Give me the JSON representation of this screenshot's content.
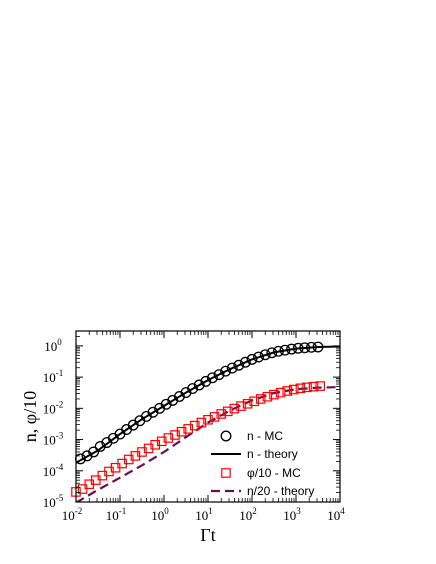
{
  "chart_data": {
    "type": "scatter",
    "title": "",
    "xlabel": "Γt",
    "ylabel": "n, φ/10",
    "xscale": "log",
    "yscale": "log",
    "xlim": [
      0.01,
      10000
    ],
    "ylim": [
      1e-05,
      3
    ],
    "x_ticks": [
      {
        "base": "10",
        "exp": "-2"
      },
      {
        "base": "10",
        "exp": "-1"
      },
      {
        "base": "10",
        "exp": "0"
      },
      {
        "base": "10",
        "exp": "1"
      },
      {
        "base": "10",
        "exp": "2"
      },
      {
        "base": "10",
        "exp": "3"
      },
      {
        "base": "10",
        "exp": "4"
      }
    ],
    "y_ticks": [
      {
        "base": "10",
        "exp": "-5"
      },
      {
        "base": "10",
        "exp": "-4"
      },
      {
        "base": "10",
        "exp": "-3"
      },
      {
        "base": "10",
        "exp": "-2"
      },
      {
        "base": "10",
        "exp": "-1"
      },
      {
        "base": "10",
        "exp": "0"
      }
    ],
    "grid": false,
    "legend_position": "bottom-right",
    "series": [
      {
        "name": "n - MC",
        "kind": "markers",
        "marker": "circle",
        "color": "#000000",
        "points": [
          [
            0.0126,
            0.00024
          ],
          [
            0.0178,
            0.0003
          ],
          [
            0.0251,
            0.0004
          ],
          [
            0.0355,
            0.0006
          ],
          [
            0.0501,
            0.0008
          ],
          [
            0.0708,
            0.0011
          ],
          [
            0.1,
            0.0015
          ],
          [
            0.141,
            0.0021
          ],
          [
            0.2,
            0.0029
          ],
          [
            0.282,
            0.004
          ],
          [
            0.398,
            0.0055
          ],
          [
            0.562,
            0.0075
          ],
          [
            0.794,
            0.01
          ],
          [
            1.12,
            0.0135
          ],
          [
            1.58,
            0.018
          ],
          [
            2.24,
            0.024
          ],
          [
            3.16,
            0.032
          ],
          [
            4.47,
            0.043
          ],
          [
            6.31,
            0.056
          ],
          [
            8.91,
            0.073
          ],
          [
            12.6,
            0.095
          ],
          [
            17.8,
            0.12
          ],
          [
            25.1,
            0.155
          ],
          [
            35.5,
            0.195
          ],
          [
            50.1,
            0.24
          ],
          [
            70.8,
            0.3
          ],
          [
            100,
            0.37
          ],
          [
            141,
            0.44
          ],
          [
            200,
            0.52
          ],
          [
            282,
            0.6
          ],
          [
            398,
            0.67
          ],
          [
            562,
            0.73
          ],
          [
            794,
            0.79
          ],
          [
            1120,
            0.84
          ],
          [
            1580,
            0.87
          ],
          [
            2240,
            0.9
          ],
          [
            3160,
            0.92
          ]
        ]
      },
      {
        "name": "n - theory",
        "kind": "line",
        "dash": "solid",
        "color": "#000000",
        "points": [
          [
            0.01,
            0.00018
          ],
          [
            0.0316,
            0.00045
          ],
          [
            0.1,
            0.0015
          ],
          [
            0.316,
            0.0045
          ],
          [
            1,
            0.012
          ],
          [
            3.16,
            0.032
          ],
          [
            10,
            0.08
          ],
          [
            31.6,
            0.18
          ],
          [
            100,
            0.37
          ],
          [
            316,
            0.62
          ],
          [
            1000,
            0.82
          ],
          [
            3160,
            0.92
          ],
          [
            10000,
            0.96
          ]
        ]
      },
      {
        "name": "φ/10 - MC",
        "kind": "markers",
        "marker": "square",
        "color": "#ff0000",
        "points": [
          [
            0.01,
            2.1e-05
          ],
          [
            0.0141,
            2.6e-05
          ],
          [
            0.02,
            3.7e-05
          ],
          [
            0.0282,
            5e-05
          ],
          [
            0.0398,
            7e-05
          ],
          [
            0.0562,
            9.5e-05
          ],
          [
            0.0794,
            0.000125
          ],
          [
            0.112,
            0.00017
          ],
          [
            0.158,
            0.00023
          ],
          [
            0.224,
            0.0003
          ],
          [
            0.316,
            0.0004
          ],
          [
            0.447,
            0.00052
          ],
          [
            0.631,
            0.00068
          ],
          [
            0.891,
            0.00088
          ],
          [
            1.26,
            0.00112
          ],
          [
            1.78,
            0.0014
          ],
          [
            2.51,
            0.00178
          ],
          [
            3.55,
            0.0022
          ],
          [
            5.01,
            0.0028
          ],
          [
            7.08,
            0.0035
          ],
          [
            10,
            0.0043
          ],
          [
            14.1,
            0.0053
          ],
          [
            20,
            0.0066
          ],
          [
            28.2,
            0.008
          ],
          [
            39.8,
            0.0098
          ],
          [
            56.2,
            0.0118
          ],
          [
            79.4,
            0.014
          ],
          [
            112,
            0.0168
          ],
          [
            158,
            0.02
          ],
          [
            224,
            0.0235
          ],
          [
            316,
            0.0275
          ],
          [
            447,
            0.0318
          ],
          [
            631,
            0.036
          ],
          [
            891,
            0.04
          ],
          [
            1260,
            0.0438
          ],
          [
            1780,
            0.047
          ],
          [
            2510,
            0.0495
          ],
          [
            3550,
            0.0515
          ]
        ]
      },
      {
        "name": "n/20 - theory",
        "kind": "line",
        "dash": "dashed",
        "color": "#6b0f4a",
        "points": [
          [
            0.01,
            9.5e-06
          ],
          [
            0.0316,
            2.45e-05
          ],
          [
            0.1,
            6e-05
          ],
          [
            0.316,
            0.00015
          ],
          [
            1,
            0.0004
          ],
          [
            3.16,
            0.0012
          ],
          [
            10,
            0.0035
          ],
          [
            31.6,
            0.0085
          ],
          [
            100,
            0.018
          ],
          [
            316,
            0.031
          ],
          [
            1000,
            0.041
          ],
          [
            3160,
            0.046
          ],
          [
            10000,
            0.048
          ]
        ]
      }
    ]
  }
}
